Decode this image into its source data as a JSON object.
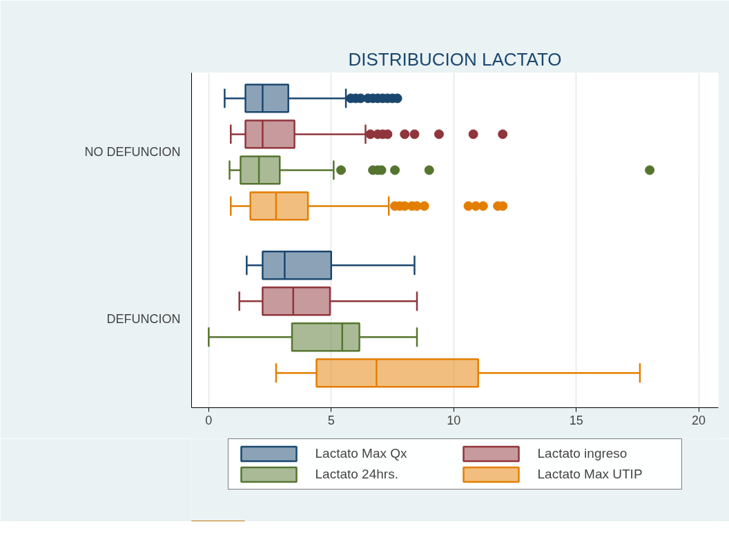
{
  "chart_data": {
    "type": "box",
    "orientation": "horizontal",
    "title": "DISTRIBUCION LACTATO",
    "categories": [
      "NO DEFUNCION",
      "DEFUNCION"
    ],
    "series": [
      {
        "name": "Lactato Max Qx",
        "color": "#1a476f",
        "boxes": [
          {
            "low": 0.65,
            "q1": 1.5,
            "median": 2.2,
            "q3": 3.25,
            "high": 5.6,
            "outliers": [
              5.8,
              6.0,
              6.2,
              6.5,
              6.7,
              6.9,
              7.1,
              7.3,
              7.5,
              7.7
            ]
          },
          {
            "low": 1.55,
            "q1": 2.2,
            "median": 3.1,
            "q3": 5.0,
            "high": 8.4
          }
        ]
      },
      {
        "name": "Lactato ingreso",
        "color": "#90353b",
        "boxes": [
          {
            "low": 0.9,
            "q1": 1.5,
            "median": 2.2,
            "q3": 3.5,
            "high": 6.4,
            "outliers": [
              6.6,
              6.9,
              7.1,
              7.3,
              8.0,
              8.4,
              9.4,
              10.8,
              12.0
            ]
          },
          {
            "low": 1.25,
            "q1": 2.2,
            "median": 3.45,
            "q3": 4.95,
            "high": 8.5
          }
        ]
      },
      {
        "name": "Lactato 24hrs.",
        "color": "#55752f",
        "boxes": [
          {
            "low": 0.85,
            "q1": 1.3,
            "median": 2.05,
            "q3": 2.9,
            "high": 5.1,
            "outliers": [
              5.4,
              6.7,
              6.9,
              7.05,
              7.6,
              9.0,
              18.0
            ]
          },
          {
            "low": 0.0,
            "q1": 3.4,
            "median": 5.45,
            "q3": 6.15,
            "high": 8.5
          }
        ]
      },
      {
        "name": "Lactato Max UTIP",
        "color": "#e37e00",
        "boxes": [
          {
            "low": 0.9,
            "q1": 1.7,
            "median": 2.75,
            "q3": 4.05,
            "high": 7.35,
            "outliers": [
              7.6,
              7.8,
              8.0,
              8.3,
              8.5,
              8.8,
              10.6,
              10.9,
              11.2,
              11.8,
              12.0
            ]
          },
          {
            "low": 2.75,
            "q1": 4.4,
            "median": 6.85,
            "q3": 11.0,
            "high": 17.6
          }
        ]
      }
    ],
    "xlim": [
      -0.7,
      20.8
    ],
    "xticks": [
      0,
      5,
      10,
      15,
      20
    ],
    "grid": "x",
    "legend": "bottom"
  }
}
